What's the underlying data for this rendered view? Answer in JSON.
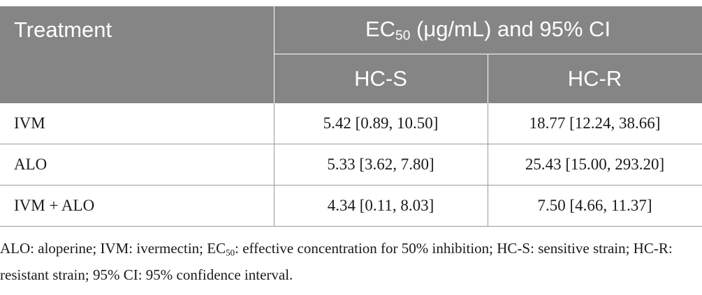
{
  "table": {
    "header": {
      "treatment": "Treatment",
      "ec_prefix": "EC",
      "ec_sub": "50",
      "ec_suffix": " (μg/mL) and 95% CI",
      "sensitive": "HC-S",
      "resistant": "HC-R"
    },
    "rows": [
      {
        "treatment": "IVM",
        "hc_s": "5.42 [0.89, 10.50]",
        "hc_r": "18.77 [12.24, 38.66]"
      },
      {
        "treatment": "ALO",
        "hc_s": "5.33 [3.62, 7.80]",
        "hc_r": "25.43 [15.00, 293.20]"
      },
      {
        "treatment": "IVM + ALO",
        "hc_s": "4.34 [0.11, 8.03]",
        "hc_r": "7.50 [4.66, 11.37]"
      }
    ]
  },
  "footnote": {
    "part1": "ALO: aloperine; IVM: ivermectin; EC",
    "sub": "50",
    "part2": ": effective concentration for 50% inhibition; HC-S: sensitive strain; HC-R: resistant strain; 95% CI: 95% confidence interval."
  },
  "colors": {
    "header_bg": "#858585",
    "header_text": "#ffffff",
    "rule": "#9a9a9a"
  }
}
